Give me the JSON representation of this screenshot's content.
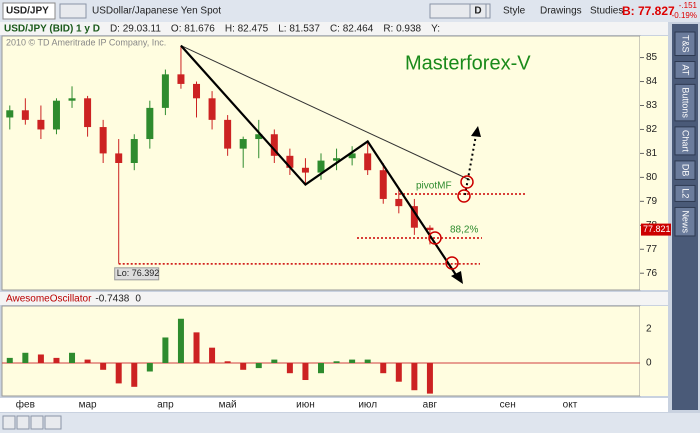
{
  "ui": {
    "symbol": "USD/JPY",
    "description": "USDollar/Japanese Yen Spot",
    "period": "D",
    "style": "Style",
    "drawings": "Drawings",
    "studies": "Studies",
    "bid": "B: 77.827",
    "change": "-.151",
    "change_pct": "-0.19%",
    "info": [
      "USD/JPY (BID) 1 y D",
      "D: 29.03.11",
      "O: 81.676",
      "H: 82.475",
      "L: 81.537",
      "C: 82.464",
      "R: 0.938",
      "Y:"
    ],
    "copyright": "2010 © TD Ameritrade IP Company, Inc.",
    "tabs": [
      "T&S",
      "AT",
      "Buttons",
      "Chart",
      "DB",
      "L2",
      "News"
    ]
  },
  "chart_data": [
    {
      "type": "candlestick",
      "title": "Masterforex-V",
      "pivot_label": "pivotMF",
      "fib_label": "88,2%",
      "low_label": "Lo: 76.392",
      "low_value": 76.392,
      "last_price": 77.821,
      "categories": [
        null,
        "фев",
        null,
        null,
        null,
        "мар",
        null,
        null,
        null,
        null,
        "апр",
        null,
        null,
        null,
        "май",
        null,
        null,
        null,
        null,
        "июн",
        null,
        null,
        null,
        "июл",
        null,
        null,
        null,
        "авг",
        null,
        null,
        null,
        null,
        "сен",
        null,
        null,
        null,
        "окт",
        null,
        null,
        null,
        null
      ],
      "open": [
        82.5,
        82.8,
        82.4,
        82.0,
        83.2,
        83.3,
        82.1,
        81.0,
        80.6,
        81.6,
        82.9,
        84.3,
        83.9,
        83.3,
        82.4,
        81.2,
        81.6,
        81.8,
        80.9,
        80.4,
        80.2,
        80.7,
        80.8,
        81.0,
        80.3,
        79.1,
        78.8,
        77.9,
        null,
        null,
        null,
        null,
        null,
        null,
        null,
        null,
        null,
        null,
        null,
        null,
        null
      ],
      "high": [
        83.0,
        83.3,
        83.0,
        83.3,
        83.8,
        83.4,
        82.4,
        81.6,
        81.8,
        83.2,
        84.5,
        85.5,
        84.0,
        83.6,
        82.6,
        81.7,
        82.4,
        82.0,
        81.2,
        80.8,
        81.0,
        81.2,
        81.3,
        81.5,
        80.6,
        79.5,
        79.1,
        78.0,
        null,
        null,
        null,
        null,
        null,
        null,
        null,
        null,
        null,
        null,
        null,
        null,
        null
      ],
      "low": [
        82.0,
        82.2,
        81.6,
        81.8,
        82.9,
        81.7,
        80.6,
        76.4,
        80.3,
        81.2,
        82.6,
        83.7,
        82.5,
        82.0,
        80.9,
        80.4,
        80.8,
        80.6,
        80.1,
        79.7,
        79.9,
        80.3,
        80.5,
        80.1,
        78.9,
        78.5,
        77.6,
        77.2,
        null,
        null,
        null,
        null,
        null,
        null,
        null,
        null,
        null,
        null,
        null,
        null,
        null
      ],
      "close": [
        82.8,
        82.4,
        82.0,
        83.2,
        83.3,
        82.1,
        81.0,
        80.6,
        81.6,
        82.9,
        84.3,
        83.9,
        83.3,
        82.4,
        81.2,
        81.6,
        81.8,
        80.9,
        80.4,
        80.2,
        80.7,
        80.8,
        81.0,
        80.3,
        79.1,
        78.8,
        77.9,
        77.8,
        null,
        null,
        null,
        null,
        null,
        null,
        null,
        null,
        null,
        null,
        null,
        null,
        null
      ],
      "up_color": "#2e8b2e",
      "down_color": "#cc2222",
      "ylim": [
        75.3,
        85.9
      ],
      "yticks": [
        76,
        77,
        78,
        79,
        80,
        81,
        82,
        83,
        84,
        85
      ]
    },
    {
      "type": "bar",
      "title": "AwesomeOscillator",
      "readouts": [
        -0.7438,
        0
      ],
      "values": [
        0.3,
        0.6,
        0.5,
        0.3,
        0.6,
        0.2,
        -0.4,
        -1.2,
        -1.4,
        -0.5,
        1.5,
        2.6,
        1.8,
        0.9,
        0.1,
        -0.4,
        -0.3,
        0.2,
        -0.6,
        -1.0,
        -0.6,
        0.1,
        0.2,
        0.2,
        -0.6,
        -1.1,
        -1.6,
        -1.8,
        null,
        null,
        null,
        null,
        null,
        null,
        null,
        null,
        null,
        null,
        null,
        null,
        null
      ],
      "up_color": "#2e8b2e",
      "down_color": "#cc2222",
      "ylim": [
        -1.94,
        3.35
      ],
      "yticks": [
        0,
        2
      ]
    }
  ]
}
